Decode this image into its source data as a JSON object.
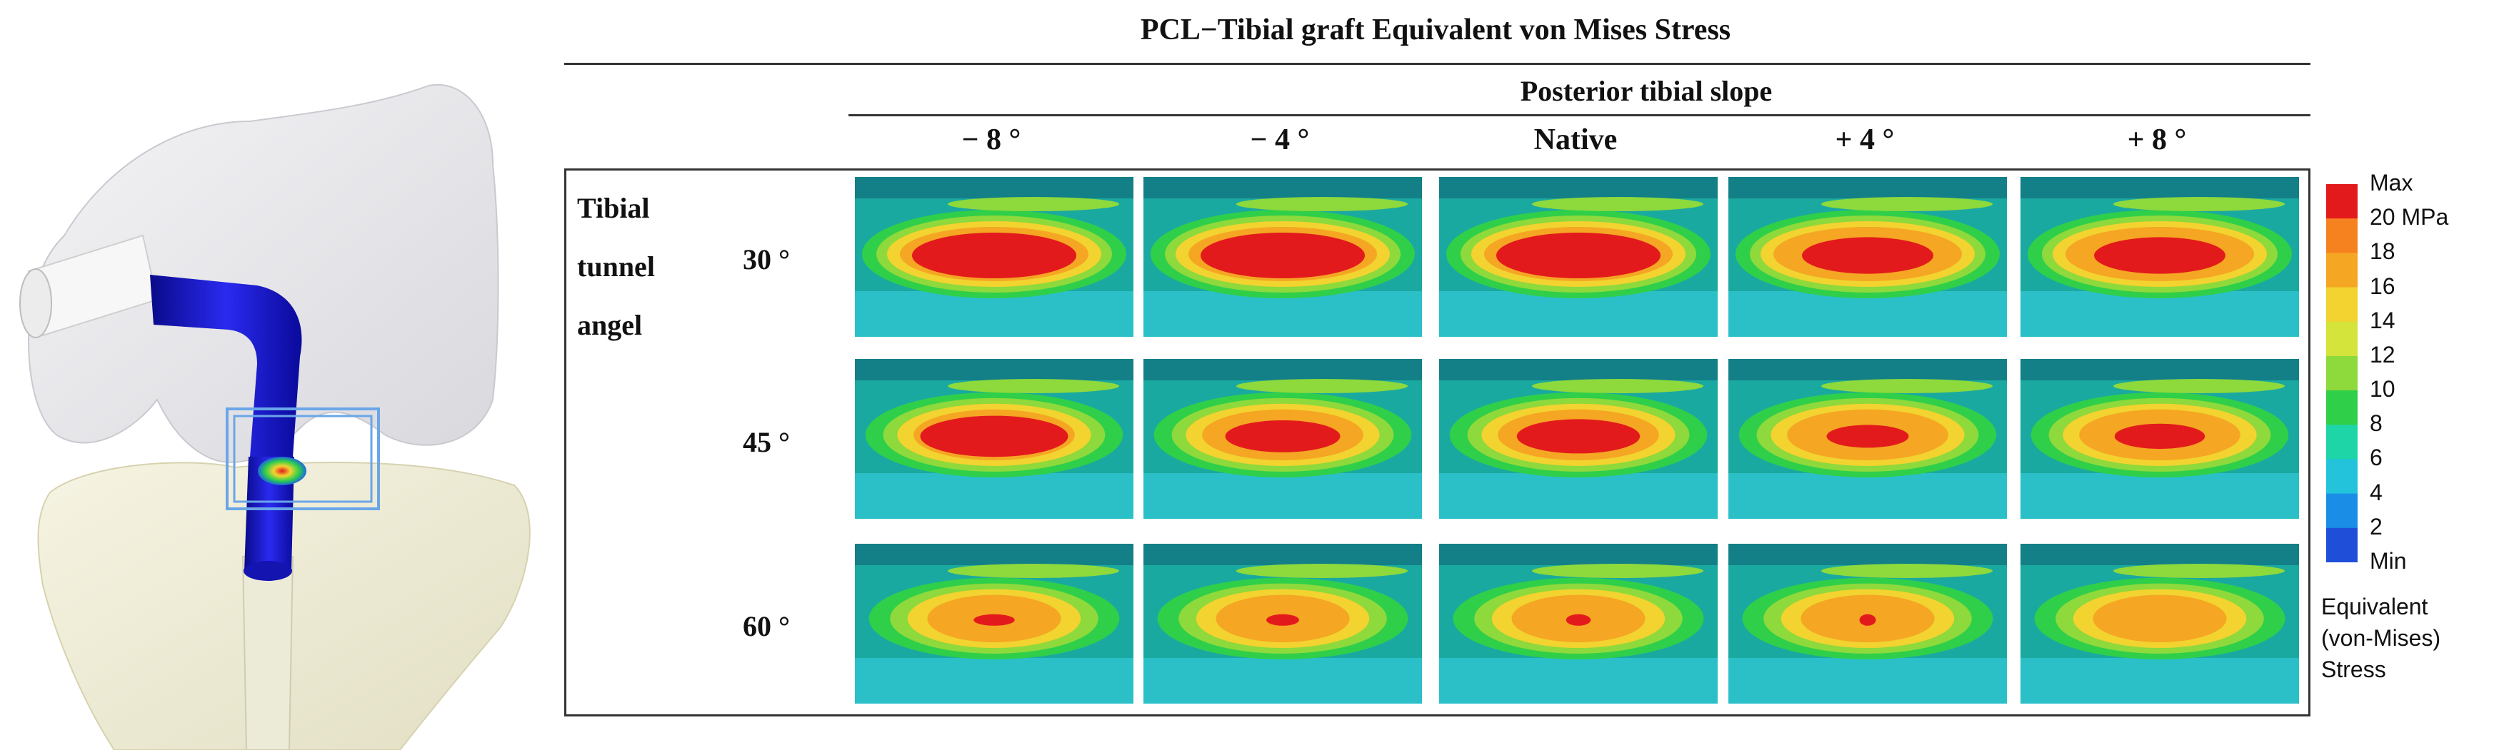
{
  "title": "PCL−Tibial graft Equivalent von Mises Stress",
  "subtitle": "Posterior tibial slope",
  "columns": [
    "− 8 °",
    "− 4 °",
    "Native",
    "+ 4 °",
    "+ 8 °"
  ],
  "row_title": [
    "Tibial",
    "tunnel",
    "angel"
  ],
  "rows": [
    "30 °",
    "45 °",
    "60 °"
  ],
  "legend": {
    "labels": [
      "Max",
      "20 MPa",
      "18",
      "16",
      "14",
      "12",
      "10",
      "8",
      "6",
      "4",
      "2",
      "Min"
    ],
    "colors": [
      "#e31a1c",
      "#f6821f",
      "#f5a623",
      "#f2d330",
      "#d4e43a",
      "#8ed93b",
      "#2fcf4a",
      "#1dd5a6",
      "#23c3dc",
      "#1a8ee6",
      "#1f4fd8",
      "#0a0acc"
    ],
    "caption": [
      "Equivalent",
      "(von-Mises)",
      "Stress"
    ]
  },
  "colors": {
    "background_teal": "#1aa9a0",
    "stress_red": "#e31a1c",
    "graft_blue": "#1a1ad8",
    "bone": "#f3f1dc",
    "femur": "#ececef"
  },
  "heatmap_core_level": [
    [
      1.0,
      1.0,
      1.0,
      0.8,
      0.8
    ],
    [
      0.9,
      0.7,
      0.75,
      0.5,
      0.55
    ],
    [
      0.25,
      0.2,
      0.15,
      0.1,
      0.0
    ]
  ]
}
